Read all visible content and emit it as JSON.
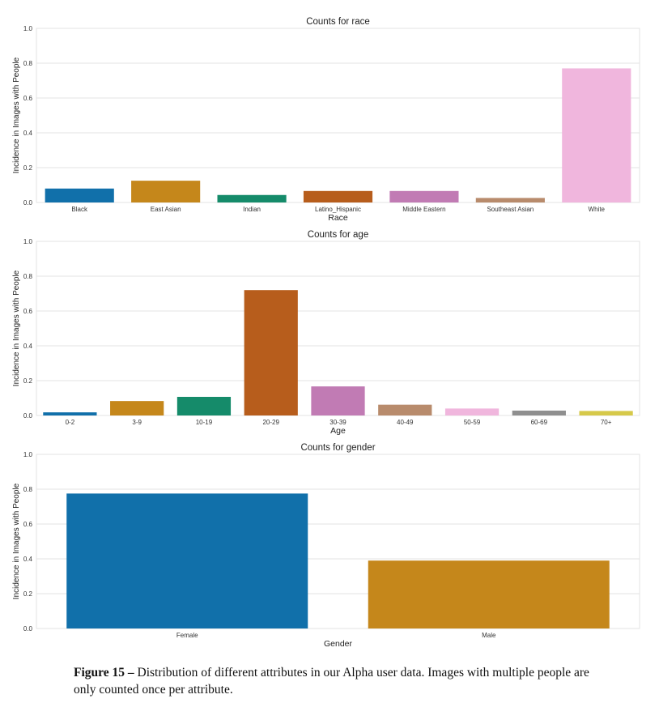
{
  "chart_data": [
    {
      "type": "bar",
      "title": "Counts for race",
      "xlabel": "Race",
      "ylabel": "Incidence in Images with People",
      "ylim": [
        0,
        1.0
      ],
      "yticks": [
        "0.0",
        "0.2",
        "0.4",
        "0.6",
        "0.8",
        "1.0"
      ],
      "categories": [
        "Black",
        "East Asian",
        "Indian",
        "Latino_Hispanic",
        "Middle Eastern",
        "Southeast Asian",
        "White"
      ],
      "values": [
        0.08,
        0.125,
        0.043,
        0.066,
        0.066,
        0.026,
        0.77
      ],
      "colors": [
        "#1170aa",
        "#c5871b",
        "#158b6a",
        "#b75d1c",
        "#c17bb4",
        "#b88b6c",
        "#f0b6dd"
      ],
      "grid": true
    },
    {
      "type": "bar",
      "title": "Counts for age",
      "xlabel": "Age",
      "ylabel": "Incidence in Images with People",
      "ylim": [
        0,
        1.0
      ],
      "yticks": [
        "0.0",
        "0.2",
        "0.4",
        "0.6",
        "0.8",
        "1.0"
      ],
      "categories": [
        "0-2",
        "3-9",
        "10-19",
        "20-29",
        "30-39",
        "40-49",
        "50-59",
        "60-69",
        "70+"
      ],
      "values": [
        0.018,
        0.083,
        0.107,
        0.72,
        0.167,
        0.062,
        0.04,
        0.028,
        0.026
      ],
      "colors": [
        "#1170aa",
        "#c5871b",
        "#158b6a",
        "#b75d1c",
        "#c17bb4",
        "#b88b6c",
        "#f0b6dd",
        "#8f8f8f",
        "#d6c94a"
      ],
      "grid": true
    },
    {
      "type": "bar",
      "title": "Counts for gender",
      "xlabel": "Gender",
      "ylabel": "Incidence in Images with People",
      "ylim": [
        0,
        1.0
      ],
      "yticks": [
        "0.0",
        "0.2",
        "0.4",
        "0.6",
        "0.8",
        "1.0"
      ],
      "categories": [
        "Female",
        "Male"
      ],
      "values": [
        0.775,
        0.39
      ],
      "colors": [
        "#1170aa",
        "#c5871b"
      ],
      "grid": true
    }
  ],
  "caption": {
    "label": "Figure 15 –",
    "text": " Distribution of different attributes in our Alpha user data. Images with multiple people are only counted once per attribute."
  }
}
